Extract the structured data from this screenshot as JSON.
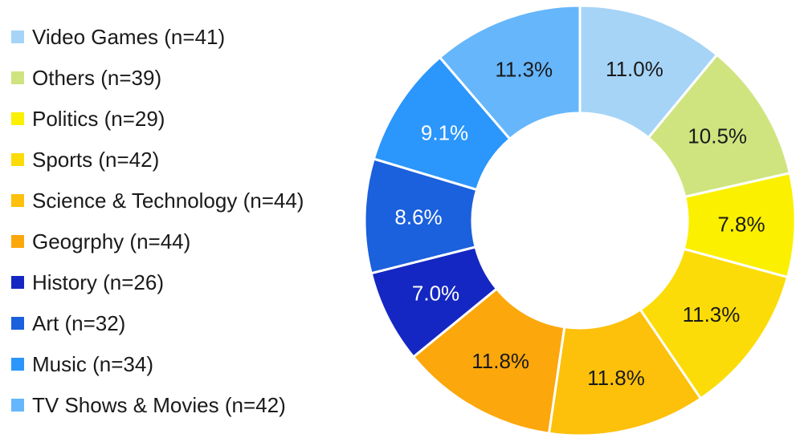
{
  "chart_data": {
    "type": "pie",
    "style": "donut",
    "title": "",
    "legend_position": "left",
    "slices": [
      {
        "legend": "Video Games (n=41)",
        "value": 11.0,
        "label": "11.0%",
        "color": "#a6d4f7",
        "label_color": "#1a1a1a"
      },
      {
        "legend": "Others (n=39)",
        "value": 10.5,
        "label": "10.5%",
        "color": "#cfe47f",
        "label_color": "#1a1a1a"
      },
      {
        "legend": "Politics (n=29)",
        "value": 7.8,
        "label": "7.8%",
        "color": "#fbf000",
        "label_color": "#1a1a1a"
      },
      {
        "legend": "Sports (n=42)",
        "value": 11.3,
        "label": "11.3%",
        "color": "#fcdc08",
        "label_color": "#1a1a1a"
      },
      {
        "legend": "Science & Technology (n=44)",
        "value": 11.8,
        "label": "11.8%",
        "color": "#fdc00b",
        "label_color": "#1a1a1a"
      },
      {
        "legend": "Geogrphy (n=44)",
        "value": 11.8,
        "label": "11.8%",
        "color": "#fca70b",
        "label_color": "#1a1a1a"
      },
      {
        "legend": "History (n=26)",
        "value": 7.0,
        "label": "7.0%",
        "color": "#1527c2",
        "label_color": "#ffffff"
      },
      {
        "legend": "Art (n=32)",
        "value": 8.6,
        "label": "8.6%",
        "color": "#1b60dc",
        "label_color": "#ffffff"
      },
      {
        "legend": "Music (n=34)",
        "value": 9.1,
        "label": "9.1%",
        "color": "#2b96fb",
        "label_color": "#ffffff"
      },
      {
        "legend": "TV Shows & Movies (n=42)",
        "value": 11.3,
        "label": "11.3%",
        "color": "#66b6fb",
        "label_color": "#1a1a1a"
      }
    ]
  }
}
